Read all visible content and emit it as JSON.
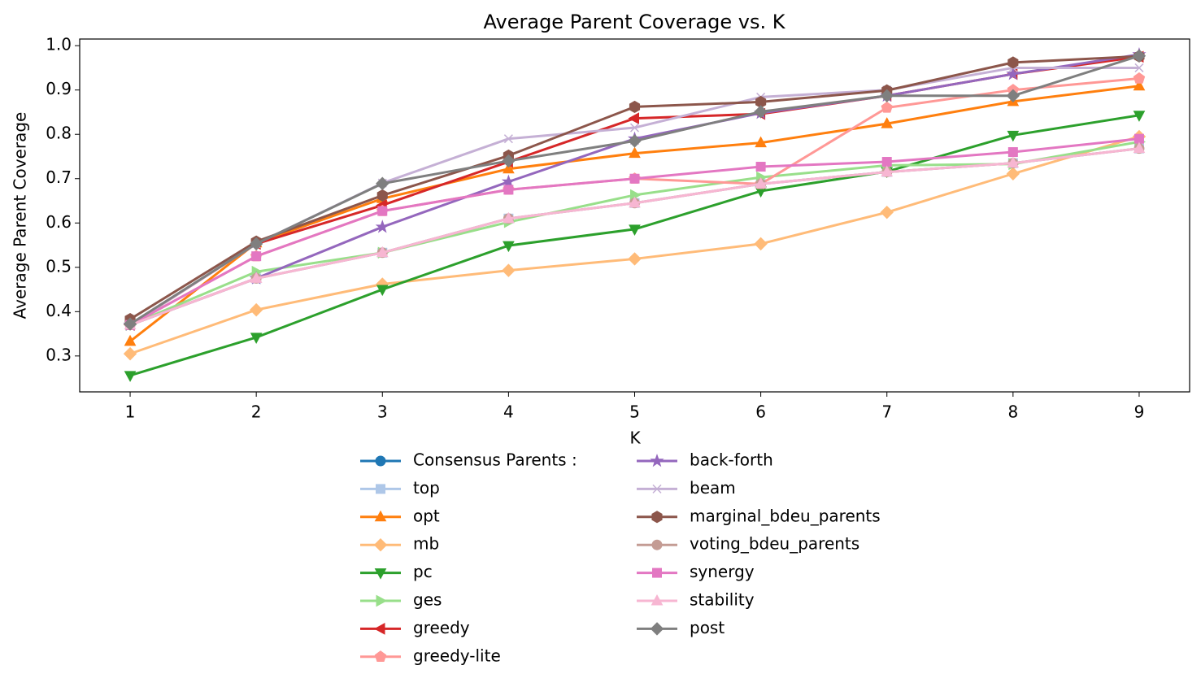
{
  "chart_data": {
    "type": "line",
    "title": "Average Parent Coverage vs. K",
    "xlabel": "K",
    "ylabel": "Average Parent Coverage",
    "x": [
      1,
      2,
      3,
      4,
      5,
      6,
      7,
      8,
      9
    ],
    "xlim": [
      0.6,
      9.4
    ],
    "xticks": [
      1,
      2,
      3,
      4,
      5,
      6,
      7,
      8,
      9
    ],
    "ylim": [
      0.219,
      1.015
    ],
    "yticks": [
      {
        "value": 0.3,
        "label": "0.3"
      },
      {
        "value": 0.4,
        "label": "0.4"
      },
      {
        "value": 0.5,
        "label": "0.5"
      },
      {
        "value": 0.6,
        "label": "0.6"
      },
      {
        "value": 0.7,
        "label": "0.7"
      },
      {
        "value": 0.8,
        "label": "0.8"
      },
      {
        "value": 0.9,
        "label": "0.9"
      },
      {
        "value": 1.0,
        "label": "1.0"
      }
    ],
    "grid": false,
    "legend": "below",
    "series": [
      {
        "name": "Consensus Parents :",
        "color": "#1f77b4",
        "marker": "o",
        "values": [
          null,
          null,
          null,
          null,
          null,
          null,
          null,
          null,
          null
        ]
      },
      {
        "name": "top",
        "color": "#aec7e8",
        "marker": "s",
        "values": [
          0.37,
          0.475,
          0.533,
          0.61,
          0.645,
          0.688,
          0.715,
          0.735,
          0.768
        ]
      },
      {
        "name": "opt",
        "color": "#ff7f0e",
        "marker": "^",
        "values": [
          0.333,
          0.555,
          0.655,
          0.722,
          0.757,
          0.781,
          0.824,
          0.874,
          0.909
        ]
      },
      {
        "name": "mb",
        "color": "#ffbb78",
        "marker": "D",
        "values": [
          0.305,
          0.404,
          0.462,
          0.493,
          0.519,
          0.553,
          0.624,
          0.711,
          0.795
        ]
      },
      {
        "name": "pc",
        "color": "#2ca02c",
        "marker": "v",
        "values": [
          0.256,
          0.342,
          0.45,
          0.549,
          0.586,
          0.672,
          0.716,
          0.798,
          0.843
        ]
      },
      {
        "name": "ges",
        "color": "#98df8a",
        "marker": ">",
        "values": [
          0.37,
          0.49,
          0.533,
          0.602,
          0.663,
          0.703,
          0.73,
          0.733,
          0.783
        ]
      },
      {
        "name": "greedy",
        "color": "#d62728",
        "marker": "<",
        "values": [
          0.37,
          0.553,
          0.64,
          0.738,
          0.836,
          0.846,
          0.887,
          0.936,
          0.975
        ]
      },
      {
        "name": "greedy-lite",
        "color": "#ff9896",
        "marker": "p",
        "values": [
          0.37,
          0.525,
          0.627,
          0.675,
          0.7,
          0.688,
          0.86,
          0.9,
          0.926
        ]
      },
      {
        "name": "back-forth",
        "color": "#9467bd",
        "marker": "*",
        "values": [
          0.37,
          0.475,
          0.591,
          0.693,
          0.79,
          0.848,
          0.887,
          0.936,
          0.98
        ]
      },
      {
        "name": "beam",
        "color": "#c5b0d5",
        "marker": "x",
        "values": [
          0.37,
          0.553,
          0.69,
          0.79,
          0.815,
          0.884,
          0.9,
          0.95,
          0.95
        ]
      },
      {
        "name": "marginal_bdeu_parents",
        "color": "#8c564b",
        "marker": "h",
        "values": [
          0.383,
          0.558,
          0.662,
          0.752,
          0.862,
          0.873,
          0.899,
          0.962,
          0.976
        ]
      },
      {
        "name": "voting_bdeu_parents",
        "color": "#c49c94",
        "marker": "o",
        "values": [
          0.37,
          0.475,
          0.533,
          0.61,
          0.645,
          0.688,
          0.715,
          0.735,
          0.768
        ]
      },
      {
        "name": "synergy",
        "color": "#e377c2",
        "marker": "s",
        "values": [
          0.37,
          0.525,
          0.627,
          0.675,
          0.7,
          0.727,
          0.738,
          0.76,
          0.79
        ]
      },
      {
        "name": "stability",
        "color": "#f7b6d2",
        "marker": "^",
        "values": [
          0.37,
          0.475,
          0.533,
          0.61,
          0.645,
          0.688,
          0.715,
          0.735,
          0.768
        ]
      },
      {
        "name": "post",
        "color": "#7f7f7f",
        "marker": "D",
        "values": [
          0.372,
          0.553,
          0.689,
          0.74,
          0.785,
          0.851,
          0.887,
          0.887,
          0.977
        ]
      }
    ]
  }
}
